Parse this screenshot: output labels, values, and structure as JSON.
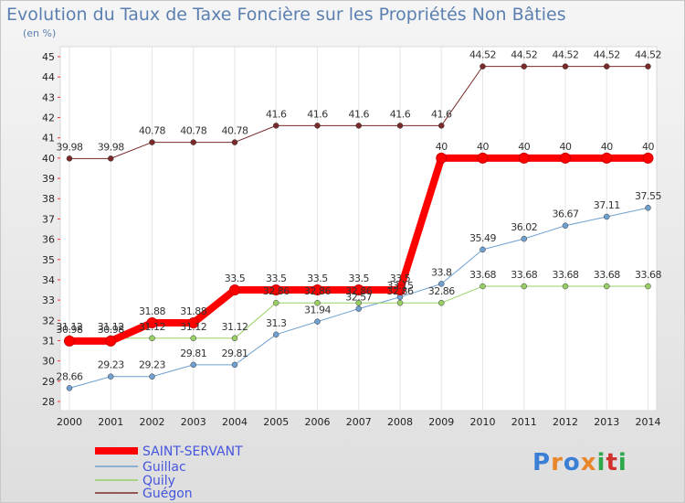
{
  "title": "Evolution du Taux de Taxe Foncière sur les Propriétés Non Bâties",
  "subtitle": "(en %)",
  "logo": "Proxiti",
  "chart_data": {
    "type": "line",
    "title": "Evolution du Taux de Taxe Foncière sur les Propriétés Non Bâties",
    "ylabel": "(en %)",
    "xlabel": "",
    "ylim": [
      28,
      45
    ],
    "yticks": [
      28,
      29,
      30,
      31,
      32,
      33,
      34,
      35,
      36,
      37,
      38,
      39,
      40,
      41,
      42,
      43,
      44,
      45
    ],
    "grid": "vertical",
    "legend": "bottom-left",
    "x": [
      2000,
      2001,
      2002,
      2003,
      2004,
      2005,
      2006,
      2007,
      2008,
      2009,
      2010,
      2011,
      2012,
      2013,
      2014
    ],
    "series": [
      {
        "name": "Guégon",
        "color": "#7a2a2a",
        "width": 1,
        "values": [
          39.98,
          39.98,
          40.78,
          40.78,
          40.78,
          41.6,
          41.6,
          41.6,
          41.6,
          41.6,
          44.52,
          44.52,
          44.52,
          44.52,
          44.52
        ],
        "labels": [
          "39.98",
          "39.98",
          "40.78",
          "40.78",
          "40.78",
          "41.6",
          "41.6",
          "41.6",
          "41.6",
          "41.6",
          "44.52",
          "44.52",
          "44.52",
          "44.52",
          "44.52"
        ]
      },
      {
        "name": "Guillac",
        "color": "#6fa0d0",
        "width": 1,
        "values": [
          28.66,
          29.23,
          29.23,
          29.81,
          29.81,
          31.3,
          31.94,
          32.57,
          33.15,
          33.8,
          35.49,
          36.02,
          36.67,
          37.11,
          37.55
        ],
        "labels": [
          "28.66",
          "29.23",
          "29.23",
          "29.81",
          "29.81",
          "31.3",
          "31.94",
          "32.57",
          "33.15",
          "33.8",
          "35.49",
          "36.02",
          "36.67",
          "37.11",
          "37.55"
        ]
      },
      {
        "name": "Quily",
        "color": "#99d066",
        "width": 1,
        "values": [
          31.12,
          31.12,
          31.12,
          31.12,
          31.12,
          32.86,
          32.86,
          32.86,
          32.86,
          32.86,
          33.68,
          33.68,
          33.68,
          33.68,
          33.68
        ],
        "labels": [
          "31.12",
          "31.12",
          "31.12",
          "31.12",
          "31.12",
          "32.86",
          "32.86",
          "32.86",
          "32.86",
          "32.86",
          "33.68",
          "33.68",
          "33.68",
          "33.68",
          "33.68"
        ]
      },
      {
        "name": "SAINT-SERVANT",
        "color": "#ff0000",
        "width": 8,
        "values": [
          30.98,
          30.98,
          31.88,
          31.88,
          33.5,
          33.5,
          33.5,
          33.5,
          33.5,
          40,
          40,
          40,
          40,
          40,
          40
        ],
        "labels": [
          "30.98",
          "30.98",
          "31.88",
          "31.88",
          "33.5",
          "33.5",
          "33.5",
          "33.5",
          "33.5",
          "40",
          "40",
          "40",
          "40",
          "40",
          "40"
        ]
      }
    ],
    "legend_order": [
      "SAINT-SERVANT",
      "Guillac",
      "Quily",
      "Guégon"
    ]
  }
}
